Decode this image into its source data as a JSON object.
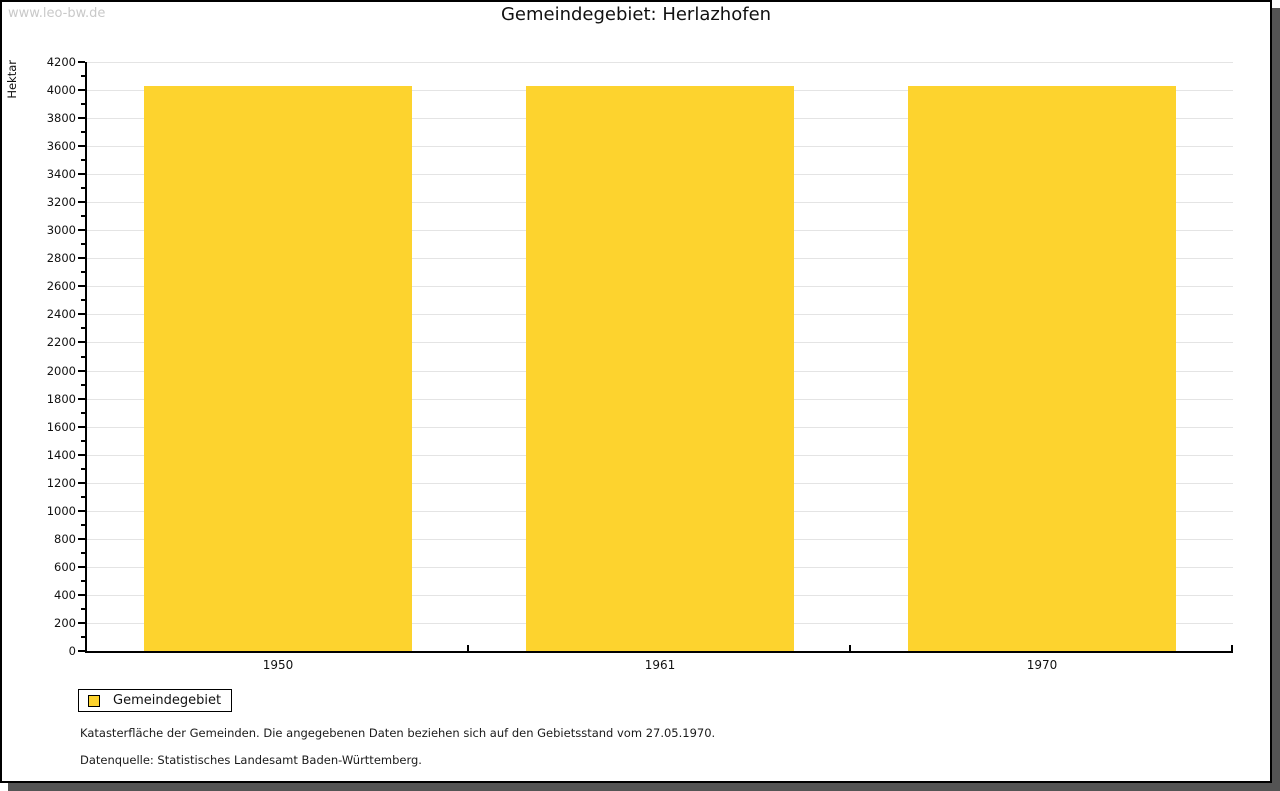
{
  "watermark": "www.leo-bw.de",
  "title": "Gemeindegebiet: Herlazhofen",
  "chart_data": {
    "type": "bar",
    "title": "Gemeindegebiet: Herlazhofen",
    "ylabel": "Hektar",
    "xlabel": "",
    "categories": [
      "1950",
      "1961",
      "1970"
    ],
    "series": [
      {
        "name": "Gemeindegebiet",
        "color": "#FDD32E",
        "values": [
          4028,
          4028,
          4028
        ]
      }
    ],
    "ylim": [
      0,
      4200
    ],
    "ytick_step": 200,
    "yminor_step": 100,
    "grid": true,
    "legend_position": "bottom-left"
  },
  "legend": {
    "label": "Gemeindegebiet",
    "swatch_color": "#FDD32E"
  },
  "footnotes": {
    "line1": "Katasterfläche der Gemeinden. Die angegebenen Daten beziehen sich auf den Gebietsstand vom 27.05.1970.",
    "line2": "Datenquelle: Statistisches Landesamt Baden-Württemberg."
  }
}
